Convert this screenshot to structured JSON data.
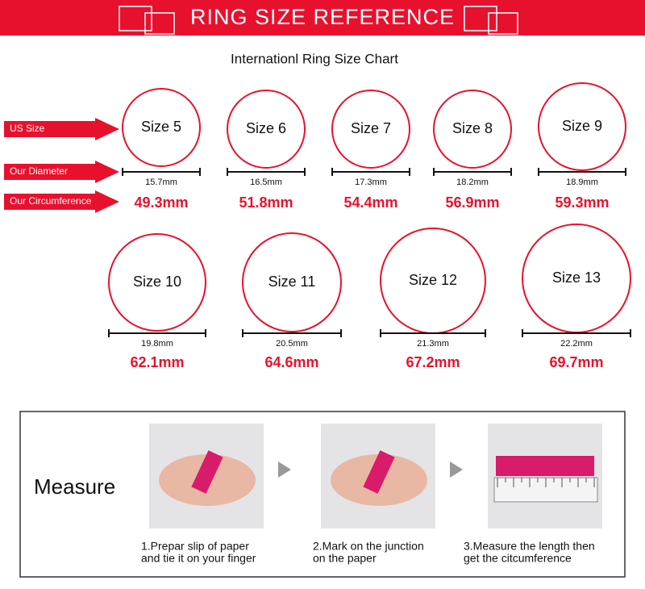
{
  "header": {
    "title": "RING SIZE REFERENCE"
  },
  "subtitle": "Internationl Ring Size Chart",
  "row_labels": [
    "US Size",
    "Our Diameter",
    "Our Circumference"
  ],
  "sizes": [
    {
      "label": "Size 5",
      "diameter": "15.7mm",
      "circumference": "49.3mm"
    },
    {
      "label": "Size 6",
      "diameter": "16.5mm",
      "circumference": "51.8mm"
    },
    {
      "label": "Size 7",
      "diameter": "17.3mm",
      "circumference": "54.4mm"
    },
    {
      "label": "Size 8",
      "diameter": "18.2mm",
      "circumference": "56.9mm"
    },
    {
      "label": "Size 9",
      "diameter": "18.9mm",
      "circumference": "59.3mm"
    },
    {
      "label": "Size 10",
      "diameter": "19.8mm",
      "circumference": "62.1mm"
    },
    {
      "label": "Size 11",
      "diameter": "20.5mm",
      "circumference": "64.6mm"
    },
    {
      "label": "Size 12",
      "diameter": "21.3mm",
      "circumference": "67.2mm"
    },
    {
      "label": "Size 13",
      "diameter": "22.2mm",
      "circumference": "69.7mm"
    }
  ],
  "measure": {
    "title": "Measure",
    "steps": [
      {
        "line1": "1.Prepar slip of paper",
        "line2": "and tie it on your finger"
      },
      {
        "line1": "2.Mark on the junction",
        "line2": "on the paper"
      },
      {
        "line1": "3.Measure the length then",
        "line2": "get the citcumference"
      }
    ]
  }
}
